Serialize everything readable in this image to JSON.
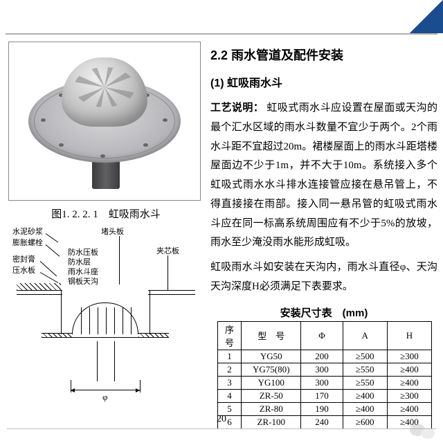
{
  "section": {
    "number_title": "2.2 雨水管道及配件安装",
    "item": "(1) 虹吸雨水斗"
  },
  "figure": {
    "caption": "图1. 2. 2. 1　虹吸雨水斗"
  },
  "labels": {
    "l1": "水泥砂浆",
    "l2": "膨胀螺栓",
    "l3": "密封膏",
    "l4": "压水板",
    "r1": "堵头板",
    "r2": "夹芯板",
    "m1": "防水压板",
    "m2": "防水层",
    "m3": "雨水斗座",
    "m4": "钢板天沟",
    "phi": "φ"
  },
  "body": {
    "lead": "工艺说明：",
    "p1": "虹吸式雨水斗应设置在屋面或天沟的最个汇水区域的雨水斗数量不宜少于两个。2个雨水斗距不宜超过20m。裙楼屋面上的雨水斗距塔楼屋面边不少于1m，并不大于10m。系统接入多个虹吸式雨水水斗排水连接管应接在悬吊管上，不得直接接在雨部。接入同一悬吊管的虹吸式雨水斗应在同一标高系统周围应有不少于5%的放坡，雨水至少淹没雨水能形成虹吸。",
    "p2": "虹吸雨水斗如安装在天沟内，雨水斗直径φ、天沟天沟深度H必须满足下表要求。"
  },
  "table": {
    "title": "安装尺寸表　(mm)",
    "columns": [
      "序号",
      "型　号",
      "Φ",
      "A",
      "H"
    ],
    "rows": [
      [
        "1",
        "YG50",
        "200",
        "≥500",
        "≥300"
      ],
      [
        "2",
        "YG75(80)",
        "300",
        "≥550",
        "≥400"
      ],
      [
        "3",
        "YG100",
        "300",
        "≥550",
        "≥400"
      ],
      [
        "4",
        "ZR-50",
        "170",
        "≥400",
        "≥300"
      ],
      [
        "5",
        "ZR-80",
        "190",
        "≥400",
        "≥400"
      ],
      [
        "6",
        "ZR-100",
        "240",
        "≥600",
        "≥400"
      ]
    ],
    "col_widths": [
      "34px",
      "86px",
      "60px",
      "64px",
      "64px"
    ]
  },
  "page_number": "20",
  "colors": {
    "badge": "#1a4d8f",
    "border": "#b0b0b0"
  }
}
